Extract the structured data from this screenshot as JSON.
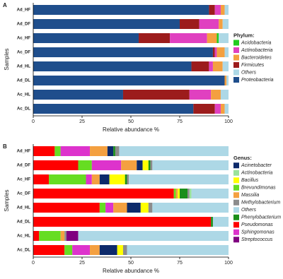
{
  "chart_data": [
    {
      "type": "stacked_bar_horizontal",
      "panel_label": "A",
      "x_label": "Relative abundance %",
      "y_label": "Samples",
      "legend_title": "Phylum:",
      "categories": [
        "Ad_HF",
        "Ad_DF",
        "Ac_HF",
        "Ac_DF",
        "Ad_HL",
        "Ad_DL",
        "Ac_HL",
        "Ac_DL"
      ],
      "xlim": [
        0,
        100
      ],
      "xticks": [
        0,
        25,
        50,
        75,
        100
      ],
      "series": [
        {
          "name": "Proteobacteria",
          "color": "#1f4e8c",
          "values": [
            90,
            75,
            54,
            92,
            81,
            98,
            46,
            82
          ]
        },
        {
          "name": "Firmicutes",
          "color": "#9c1c1c",
          "values": [
            3,
            10,
            16,
            1,
            9,
            0,
            34,
            11
          ]
        },
        {
          "name": "Actinobacteria",
          "color": "#e040c0",
          "values": [
            3,
            10,
            19,
            1,
            2,
            0,
            11,
            3
          ]
        },
        {
          "name": "Bacteroidetes",
          "color": "#f4a040",
          "values": [
            2,
            2,
            5,
            4,
            5,
            1,
            5,
            2
          ]
        },
        {
          "name": "Acidobacteria",
          "color": "#22cc22",
          "values": [
            0,
            0,
            1,
            0,
            0,
            0,
            0,
            0
          ]
        },
        {
          "name": "Others",
          "color": "#add8e6",
          "values": [
            2,
            3,
            5,
            2,
            3,
            1,
            4,
            2
          ]
        }
      ]
    },
    {
      "type": "stacked_bar_horizontal",
      "panel_label": "B",
      "x_label": "Relative abundance %",
      "y_label": "Samples",
      "legend_title": "Genus:",
      "categories": [
        "Ad_HF",
        "Ad_DF",
        "Ac_HF",
        "Ac_DF",
        "Ad_HL",
        "Ad_DL",
        "Ac_HL",
        "Ac_DL"
      ],
      "xlim": [
        0,
        100
      ],
      "xticks": [
        0,
        25,
        50,
        75,
        100
      ],
      "series": [
        {
          "name": "Pseudomonas",
          "color": "#ff0000",
          "values": [
            11,
            23,
            8,
            72,
            34,
            91,
            3,
            16
          ]
        },
        {
          "name": "Brevundimonas",
          "color": "#66dd22",
          "values": [
            3,
            7,
            19,
            1,
            3,
            0,
            11,
            4
          ]
        },
        {
          "name": "Sphingomonas",
          "color": "#dd33cc",
          "values": [
            15,
            15,
            3,
            0,
            4,
            0,
            0,
            9
          ]
        },
        {
          "name": "Massilia",
          "color": "#f4a040",
          "values": [
            9,
            8,
            4,
            1,
            7,
            0,
            2,
            5
          ]
        },
        {
          "name": "Acinetobacter",
          "color": "#0d2a6b",
          "values": [
            3,
            3,
            5,
            0,
            7,
            0,
            0,
            9
          ]
        },
        {
          "name": "Bacillus",
          "color": "#ffff00",
          "values": [
            0,
            3,
            8,
            1,
            4,
            0,
            0,
            3
          ]
        },
        {
          "name": "Phenylobacterium",
          "color": "#1a8f1a",
          "values": [
            1,
            1,
            1,
            4,
            0,
            1,
            0,
            0
          ]
        },
        {
          "name": "Methylobacterium",
          "color": "#8c8c8c",
          "values": [
            2,
            1,
            1,
            1,
            2,
            0,
            1,
            2
          ]
        },
        {
          "name": "Streptococcus",
          "color": "#800080",
          "values": [
            0,
            0,
            0,
            0,
            0,
            0,
            6,
            0
          ]
        },
        {
          "name": "Actinobacteria",
          "color": "#9be39b",
          "values": [
            0,
            0,
            0,
            1,
            0,
            0,
            0,
            0
          ]
        },
        {
          "name": "Others",
          "color": "#add8e6",
          "values": [
            56,
            39,
            51,
            19,
            39,
            8,
            77,
            52
          ]
        }
      ]
    }
  ]
}
